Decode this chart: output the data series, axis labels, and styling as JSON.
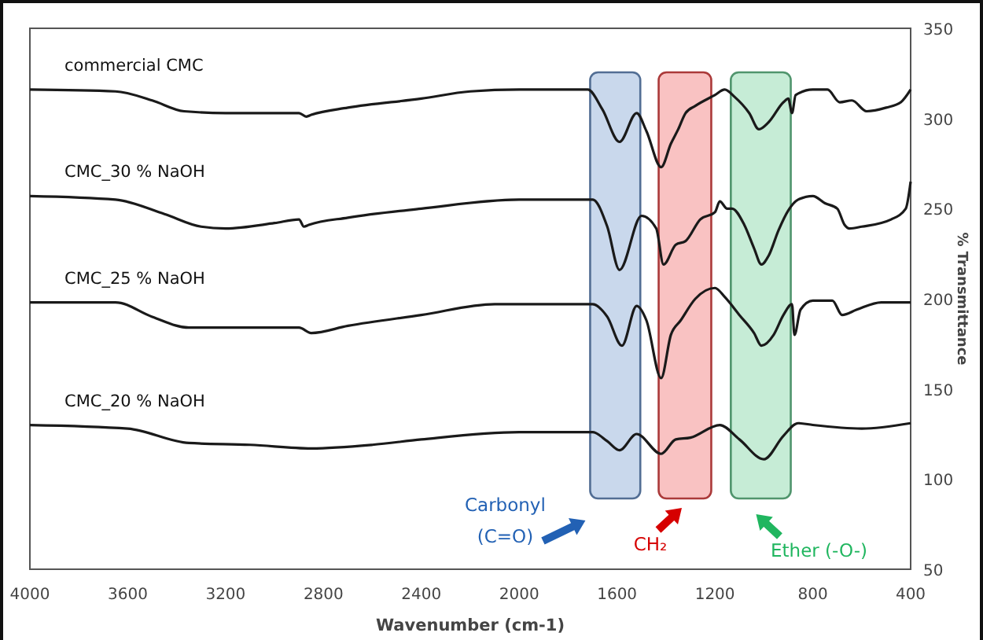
{
  "chart_data": {
    "type": "line",
    "xlabel": "Wavenumber (cm-1)",
    "ylabel": "% Transmittance",
    "xlim": [
      4000,
      400
    ],
    "xticks": [
      4000,
      3600,
      3200,
      2800,
      2400,
      2000,
      1600,
      1200,
      800,
      400
    ],
    "ylim": [
      50,
      350
    ],
    "yticks": [
      50,
      100,
      150,
      200,
      250,
      300,
      350
    ],
    "grid": false,
    "series": [
      {
        "name": "commercial CMC",
        "color": "#1a1a1a",
        "x": [
          4000,
          3650,
          3500,
          3370,
          3200,
          2900,
          2870,
          2850,
          2700,
          2400,
          2200,
          2000,
          1720,
          1660,
          1590,
          1520,
          1480,
          1420,
          1380,
          1350,
          1320,
          1280,
          1200,
          1160,
          1120,
          1060,
          1020,
          980,
          920,
          900,
          885,
          870,
          800,
          740,
          690,
          640,
          580,
          500,
          440,
          400
        ],
        "values": [
          316,
          315,
          310,
          304,
          303,
          303,
          301,
          302,
          306,
          311,
          315,
          316,
          316,
          305,
          287,
          303,
          293,
          273,
          286,
          294,
          303,
          307,
          313,
          316,
          312,
          303,
          294,
          298,
          309,
          311,
          303,
          313,
          316,
          316,
          309,
          310,
          304,
          306,
          309,
          316
        ]
      },
      {
        "name": "CMC_30 % NaOH",
        "color": "#1a1a1a",
        "x": [
          4000,
          3650,
          3450,
          3300,
          3200,
          3000,
          2900,
          2880,
          2860,
          2700,
          2400,
          2000,
          1700,
          1640,
          1590,
          1500,
          1440,
          1410,
          1360,
          1320,
          1260,
          1200,
          1180,
          1150,
          1130,
          1080,
          1040,
          1010,
          980,
          940,
          900,
          860,
          800,
          750,
          700,
          670,
          650,
          600,
          480,
          420,
          400
        ],
        "values": [
          257,
          255,
          247,
          240,
          239,
          242,
          244,
          240,
          241,
          245,
          250,
          255,
          255,
          240,
          216,
          246,
          239,
          219,
          230,
          232,
          244,
          248,
          254,
          250,
          250,
          241,
          228,
          219,
          224,
          238,
          249,
          255,
          257,
          253,
          250,
          241,
          239,
          240,
          244,
          250,
          265
        ]
      },
      {
        "name": "CMC_25 % NaOH",
        "color": "#1a1a1a",
        "x": [
          4000,
          3650,
          3500,
          3350,
          3100,
          2900,
          2850,
          2700,
          2400,
          2100,
          1700,
          1640,
          1580,
          1520,
          1480,
          1420,
          1380,
          1340,
          1280,
          1200,
          1160,
          1100,
          1040,
          1010,
          960,
          920,
          885,
          875,
          850,
          800,
          720,
          680,
          620,
          520,
          400
        ],
        "values": [
          198,
          198,
          190,
          184,
          184,
          184,
          181,
          185,
          191,
          197,
          197,
          190,
          174,
          196,
          188,
          156,
          180,
          188,
          200,
          206,
          201,
          191,
          181,
          174,
          180,
          191,
          197,
          180,
          194,
          199,
          199,
          191,
          194,
          198,
          198
        ]
      },
      {
        "name": "CMC_20 % NaOH",
        "color": "#1a1a1a",
        "x": [
          4000,
          3600,
          3350,
          3100,
          2850,
          2600,
          2400,
          2000,
          1700,
          1640,
          1590,
          1520,
          1420,
          1360,
          1300,
          1180,
          1100,
          1000,
          920,
          860,
          800,
          600,
          400
        ],
        "values": [
          130,
          128,
          120,
          119,
          117,
          119,
          122,
          126,
          126,
          121,
          116,
          125,
          114,
          122,
          123,
          130,
          122,
          111,
          124,
          131,
          130,
          128,
          131
        ]
      }
    ],
    "bands": [
      {
        "axis": "x",
        "from": 1710,
        "to": 1505,
        "label": "Carbonyl (C=O)",
        "color": "#c9d8ec"
      },
      {
        "axis": "x",
        "from": 1430,
        "to": 1215,
        "label": "CH₂",
        "color": "#f9c2c2"
      },
      {
        "axis": "x",
        "from": 1135,
        "to": 890,
        "label": "Ether (-O-)",
        "color": "#c6ecd6"
      }
    ]
  }
}
